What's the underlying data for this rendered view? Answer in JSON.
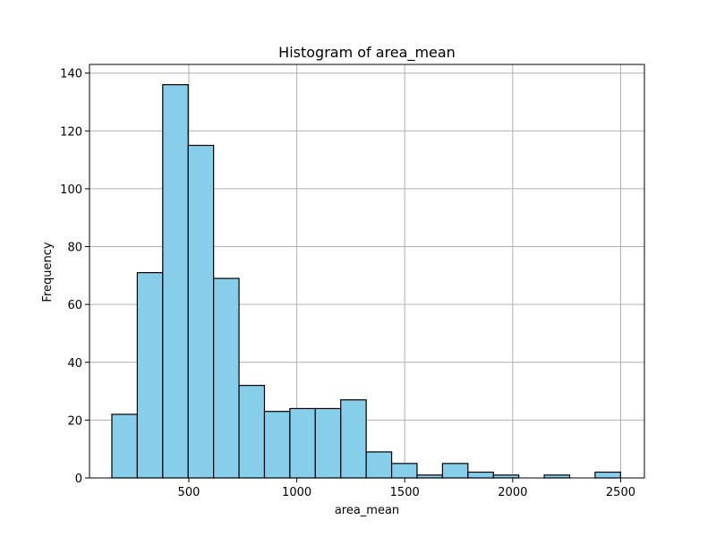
{
  "chart_data": {
    "type": "bar",
    "title": "Histogram of area_mean",
    "xlabel": "area_mean",
    "ylabel": "Frequency",
    "xlim": [
      40,
      2610
    ],
    "ylim": [
      0,
      143
    ],
    "bin_start": 143.5,
    "bin_width": 117.8,
    "counts": [
      22,
      71,
      136,
      115,
      69,
      32,
      23,
      24,
      24,
      27,
      9,
      5,
      1,
      5,
      2,
      1,
      0,
      1,
      0,
      2
    ],
    "xticks": [
      500,
      1000,
      1500,
      2000,
      2500
    ],
    "yticks": [
      0,
      20,
      40,
      60,
      80,
      100,
      120,
      140
    ],
    "grid": true,
    "bar_color": "#87ceeb",
    "edge_color": "#000000"
  }
}
